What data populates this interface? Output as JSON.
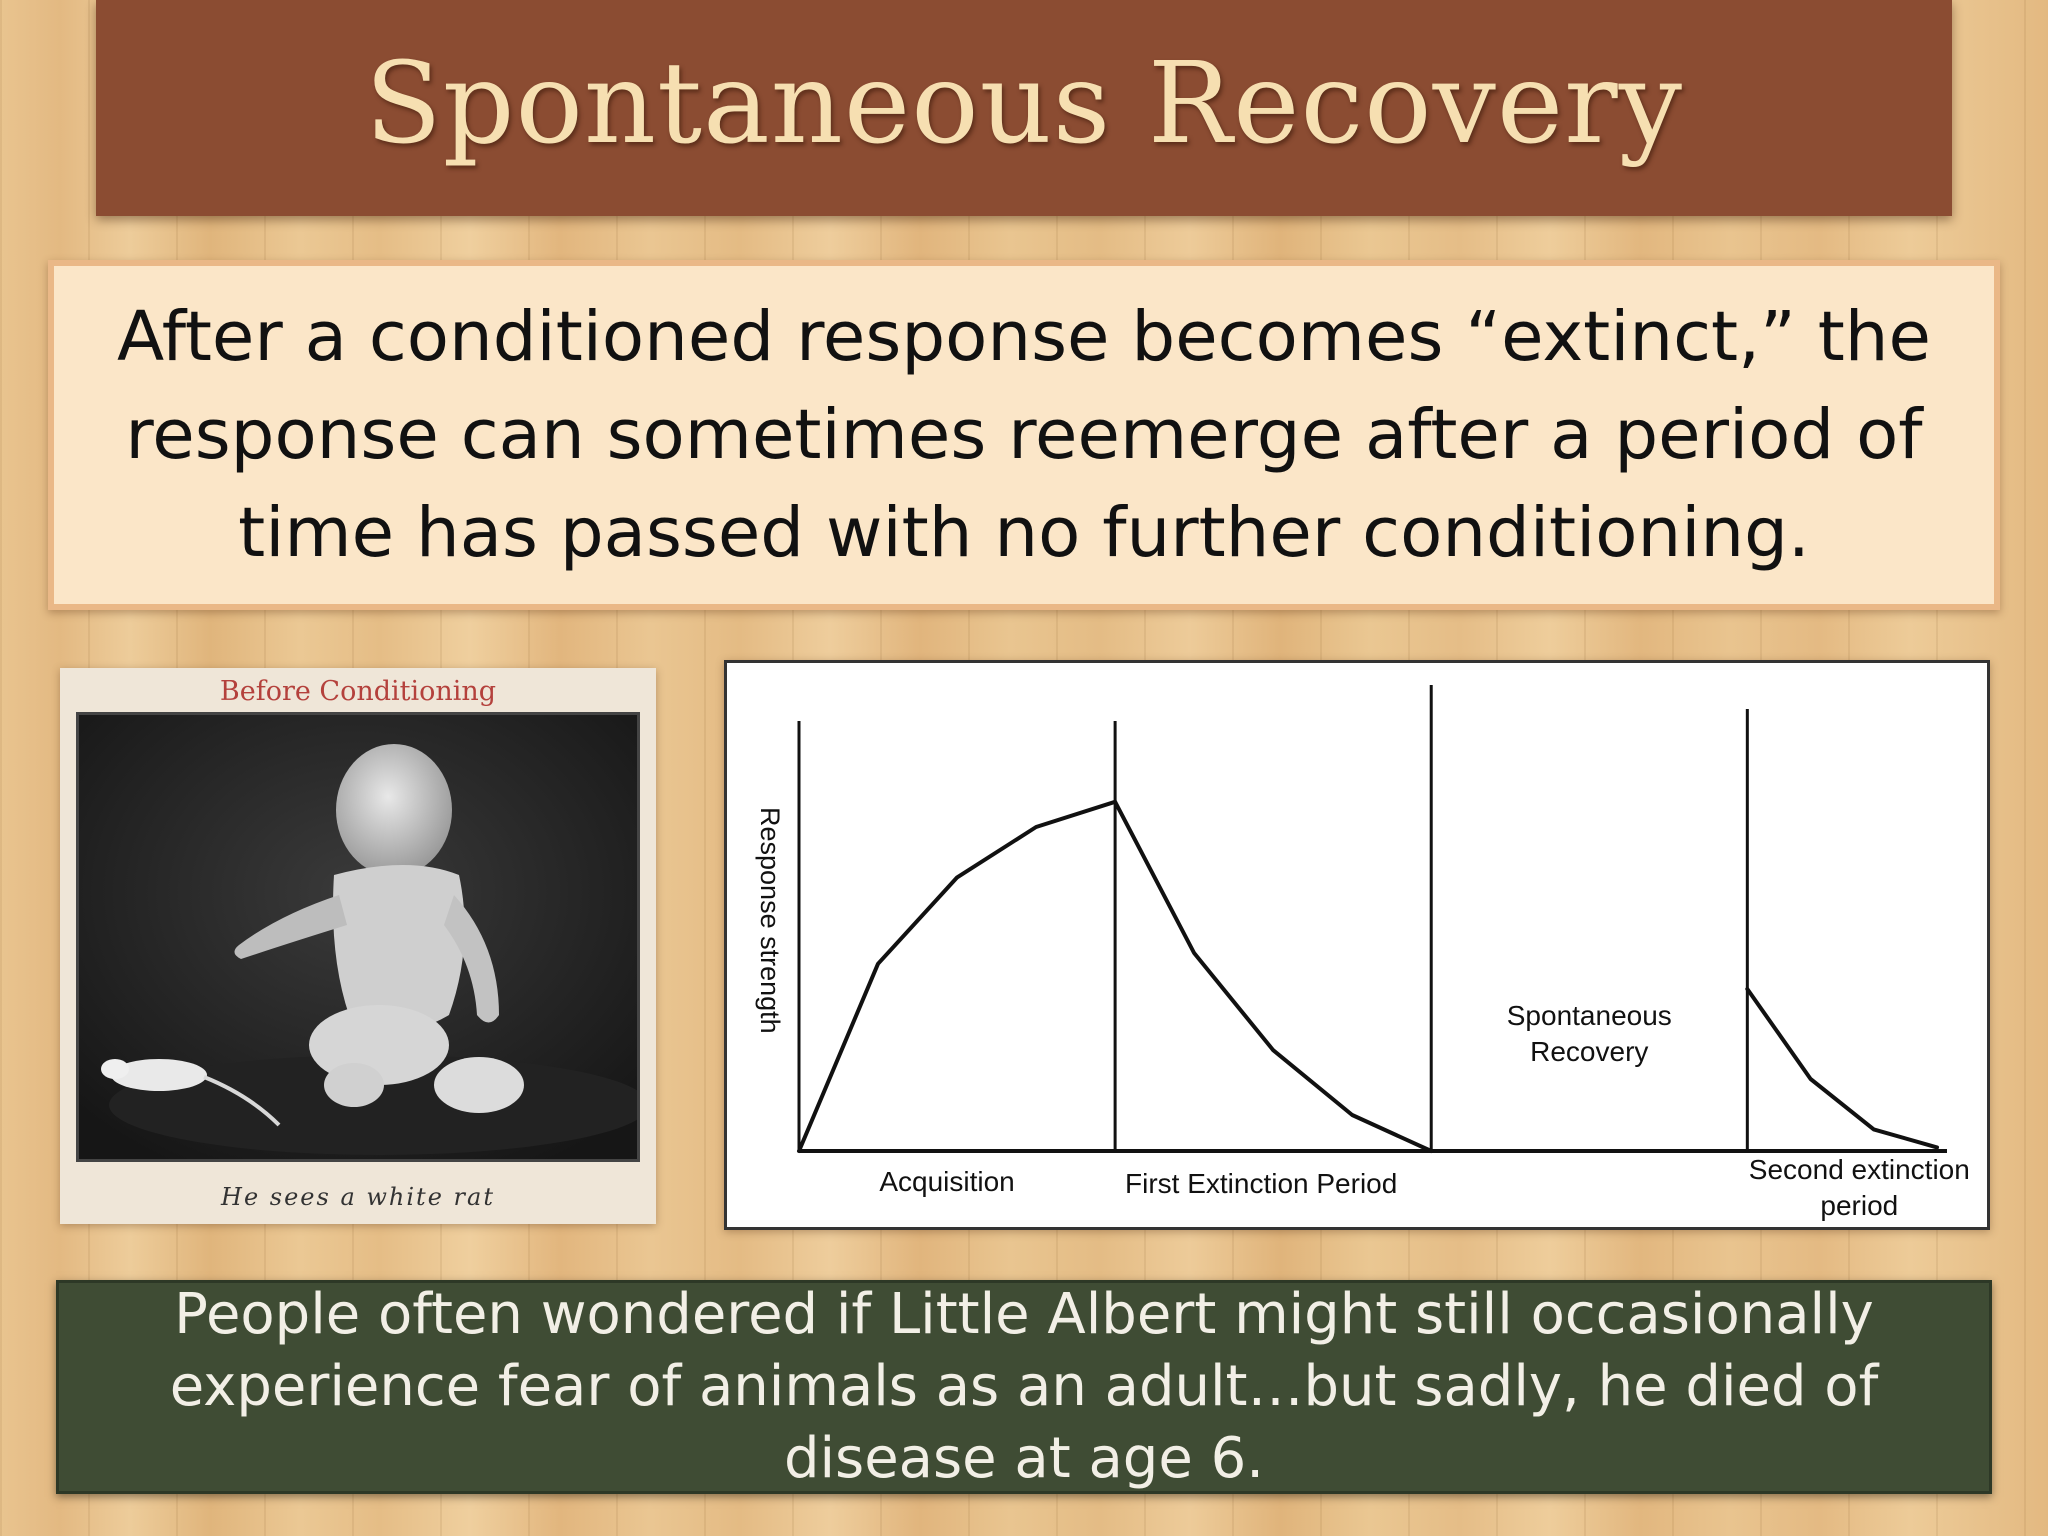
{
  "slide": {
    "title": "Spontaneous Recovery",
    "definition": "After a conditioned response becomes “extinct,” the response can sometimes reemerge after a period of time has passed with no further conditioning.",
    "note": "People often wondered if Little Albert might still occasionally experience fear of animals as an adult…but sadly, he died of disease at age 6."
  },
  "photo": {
    "caption_top": "Before Conditioning",
    "caption_bottom": "He sees a white rat"
  },
  "chart_data": {
    "type": "line",
    "ylabel": "Response strength",
    "phases": [
      "Acquisition",
      "First Extinction Period",
      "Second extinction period"
    ],
    "annotation": "Spontaneous Recovery",
    "series": [
      {
        "phase": "Acquisition",
        "x": [
          0,
          0.25,
          0.5,
          0.75,
          1.0
        ],
        "y": [
          0.0,
          0.52,
          0.76,
          0.9,
          0.97
        ]
      },
      {
        "phase": "First Extinction Period",
        "x": [
          1.0,
          1.25,
          1.5,
          1.75,
          2.0
        ],
        "y": [
          0.97,
          0.55,
          0.28,
          0.1,
          0.0
        ]
      },
      {
        "phase": "Second extinction period",
        "x": [
          3.0,
          3.2,
          3.4,
          3.6
        ],
        "y": [
          0.45,
          0.2,
          0.06,
          0.01
        ]
      }
    ],
    "xlim": [
      0,
      3.6
    ],
    "ylim": [
      0,
      1.0
    ]
  },
  "colors": {
    "title_bar": "#8b4c32",
    "title_text": "#f6dfb1",
    "definition_bg": "#fbe6c8",
    "note_bg": "#3f4c34",
    "caption_red": "#b4413c"
  }
}
